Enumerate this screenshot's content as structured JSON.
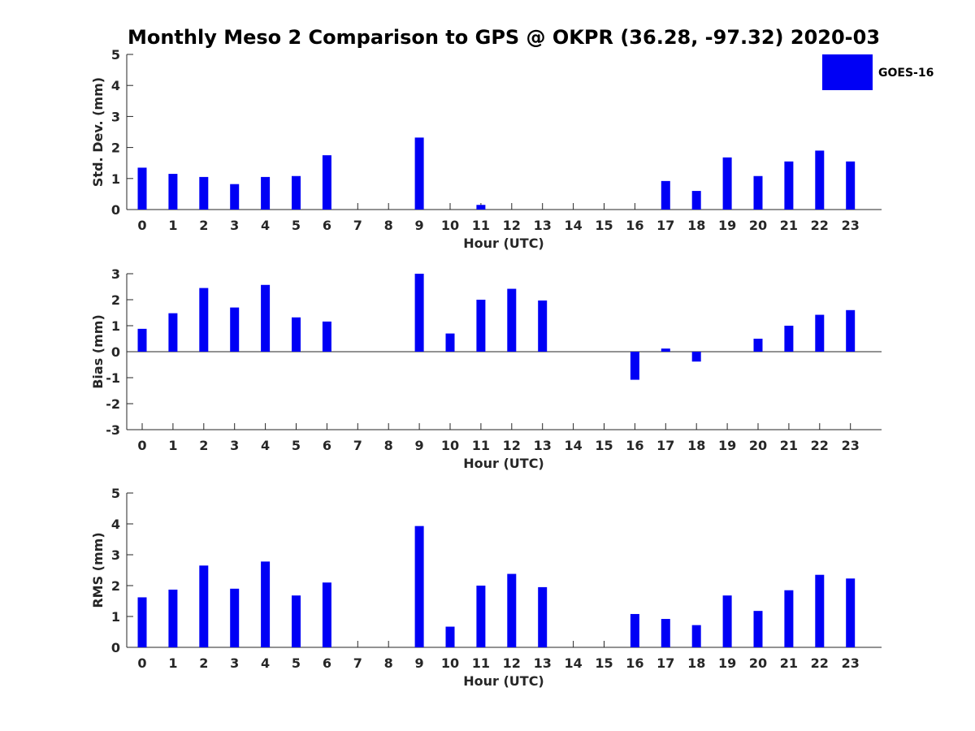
{
  "colors": {
    "bar": "#0000f5",
    "axis": "#262626",
    "background": "#ffffff"
  },
  "legend": {
    "label": "GOES-16",
    "color": "#0000f5",
    "location": "top-right"
  },
  "chart_data": [
    {
      "type": "bar",
      "title": "Monthly Meso 2 Comparison to GPS @ OKPR (36.28, -97.32) 2020-03",
      "xlabel": "Hour (UTC)",
      "ylabel": "Std. Dev. (mm)",
      "ylim": [
        0,
        5
      ],
      "yticks": [
        "0",
        "1",
        "2",
        "3",
        "4",
        "5"
      ],
      "categories": [
        "0",
        "1",
        "2",
        "3",
        "4",
        "5",
        "6",
        "7",
        "8",
        "9",
        "10",
        "11",
        "12",
        "13",
        "14",
        "15",
        "16",
        "17",
        "18",
        "19",
        "20",
        "21",
        "22",
        "23"
      ],
      "series": [
        {
          "name": "GOES-16",
          "values": [
            1.35,
            1.15,
            1.05,
            0.82,
            1.05,
            1.08,
            1.75,
            null,
            null,
            2.32,
            null,
            0.15,
            null,
            null,
            null,
            null,
            null,
            0.92,
            0.6,
            1.68,
            1.08,
            1.55,
            1.9,
            1.55
          ]
        }
      ]
    },
    {
      "type": "bar",
      "title": "",
      "xlabel": "Hour (UTC)",
      "ylabel": "Bias (mm)",
      "ylim": [
        -3,
        3
      ],
      "yticks": [
        "-3",
        "-2",
        "-1",
        "0",
        "1",
        "2",
        "3"
      ],
      "categories": [
        "0",
        "1",
        "2",
        "3",
        "4",
        "5",
        "6",
        "7",
        "8",
        "9",
        "10",
        "11",
        "12",
        "13",
        "14",
        "15",
        "16",
        "17",
        "18",
        "19",
        "20",
        "21",
        "22",
        "23"
      ],
      "series": [
        {
          "name": "GOES-16",
          "values": [
            0.88,
            1.48,
            2.45,
            1.7,
            2.57,
            1.32,
            1.16,
            null,
            null,
            3.0,
            0.7,
            2.0,
            2.42,
            1.97,
            null,
            null,
            -1.08,
            0.12,
            -0.38,
            null,
            0.5,
            1.0,
            1.42,
            1.6
          ]
        }
      ]
    },
    {
      "type": "bar",
      "title": "",
      "xlabel": "Hour (UTC)",
      "ylabel": "RMS (mm)",
      "ylim": [
        0,
        5
      ],
      "yticks": [
        "0",
        "1",
        "2",
        "3",
        "4",
        "5"
      ],
      "categories": [
        "0",
        "1",
        "2",
        "3",
        "4",
        "5",
        "6",
        "7",
        "8",
        "9",
        "10",
        "11",
        "12",
        "13",
        "14",
        "15",
        "16",
        "17",
        "18",
        "19",
        "20",
        "21",
        "22",
        "23"
      ],
      "series": [
        {
          "name": "GOES-16",
          "values": [
            1.62,
            1.87,
            2.65,
            1.9,
            2.78,
            1.68,
            2.1,
            null,
            null,
            3.93,
            0.67,
            2.0,
            2.38,
            1.95,
            null,
            null,
            1.08,
            0.92,
            0.72,
            1.68,
            1.18,
            1.85,
            2.35,
            2.23
          ]
        }
      ]
    }
  ]
}
